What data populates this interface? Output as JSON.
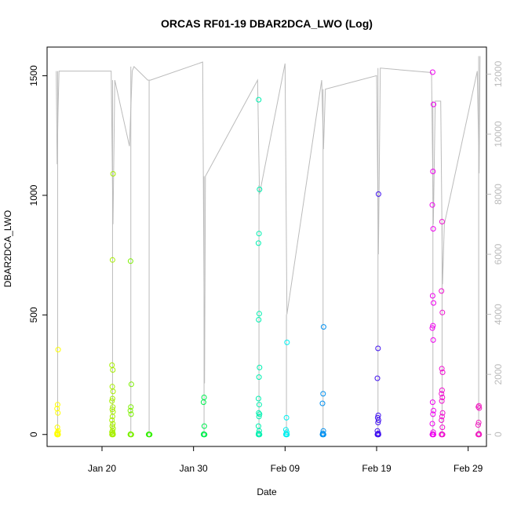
{
  "chart_data": {
    "type": "scatter",
    "title": "ORCAS RF01-19 DBAR2DCA_LWO (Log)",
    "xlabel": "Date",
    "ylabel": "DBAR2DCA_LWO",
    "x_range": [
      "2016-01-14",
      "2016-03-02"
    ],
    "ylim": [
      -50,
      1620
    ],
    "x_ticks": [
      {
        "date": "2016-01-20",
        "label": "Jan 20"
      },
      {
        "date": "2016-01-30",
        "label": "Jan 30"
      },
      {
        "date": "2016-02-09",
        "label": "Feb 09"
      },
      {
        "date": "2016-02-19",
        "label": "Feb 19"
      },
      {
        "date": "2016-02-29",
        "label": "Feb 29"
      }
    ],
    "y_ticks": [
      0,
      500,
      1000,
      1500
    ],
    "y2_ticks": [
      0,
      2000,
      4000,
      6000,
      8000,
      10000,
      12000
    ],
    "y2_range": [
      -400,
      12900
    ],
    "y2_color": "#bbbbbb",
    "grid": false,
    "legend": "none",
    "flights": [
      {
        "date": "2016-01-15",
        "color": "#ffff00",
        "values": [
          0,
          0,
          0,
          0,
          2,
          5,
          8,
          15,
          30,
          90,
          108,
          125,
          355
        ],
        "track": [
          [
            0,
            12100
          ],
          [
            0.1,
            9000
          ],
          [
            0.2,
            10800
          ],
          [
            0.3,
            12100
          ]
        ]
      },
      {
        "date": "2016-01-21",
        "color": "#a8f000",
        "values": [
          0,
          0,
          0,
          2,
          5,
          10,
          15,
          25,
          35,
          45,
          60,
          75,
          95,
          105,
          115,
          140,
          150,
          180,
          200,
          270,
          290,
          730,
          1090
        ],
        "track": [
          [
            0,
            12100
          ],
          [
            0.2,
            7000
          ],
          [
            0.4,
            11800
          ]
        ]
      },
      {
        "date": "2016-01-23",
        "color": "#7cf000",
        "values": [
          0,
          0,
          0,
          2,
          85,
          100,
          115,
          210,
          725
        ],
        "track": [
          [
            0,
            9600
          ],
          [
            0.3,
            12100
          ],
          [
            0.5,
            12250
          ]
        ]
      },
      {
        "date": "2016-01-25",
        "color": "#33f000",
        "values": [
          0,
          0,
          0,
          1
        ],
        "track": [
          [
            0,
            11800
          ],
          [
            0.3,
            11800
          ]
        ]
      },
      {
        "date": "2016-01-31",
        "color": "#00f050",
        "values": [
          0,
          0,
          0,
          2,
          35,
          135,
          155
        ],
        "track": [
          [
            0,
            12400
          ],
          [
            0.2,
            1700
          ],
          [
            0.3,
            8600
          ]
        ]
      },
      {
        "date": "2016-02-06",
        "color": "#00f0b0",
        "values": [
          0,
          0,
          0,
          5,
          15,
          35,
          75,
          85,
          90,
          125,
          150,
          240,
          280,
          480,
          505,
          800,
          840,
          1025,
          1400
        ],
        "track": [
          [
            0,
            11800
          ],
          [
            0.2,
            8000
          ],
          [
            0.4,
            8300
          ]
        ]
      },
      {
        "date": "2016-02-09",
        "color": "#00f0f0",
        "values": [
          0,
          0,
          0,
          3,
          10,
          20,
          70,
          385
        ],
        "track": [
          [
            0,
            12350
          ],
          [
            0.2,
            4000
          ]
        ]
      },
      {
        "date": "2016-02-13",
        "color": "#0090f0",
        "values": [
          0,
          0,
          0,
          5,
          15,
          130,
          170,
          450
        ],
        "track": [
          [
            0,
            11800
          ],
          [
            0.2,
            9500
          ],
          [
            0.4,
            11500
          ]
        ]
      },
      {
        "date": "2016-02-19",
        "color": "#4010f0",
        "values": [
          0,
          0,
          0,
          2,
          5,
          15,
          50,
          60,
          70,
          80,
          235,
          360,
          1005
        ],
        "track": [
          [
            0,
            11950
          ],
          [
            0.2,
            6000
          ],
          [
            0.4,
            12200
          ]
        ]
      },
      {
        "date": "2016-02-25",
        "color": "#f000f0",
        "values": [
          0,
          0,
          0,
          2,
          10,
          45,
          85,
          100,
          135,
          395,
          445,
          455,
          550,
          580,
          860,
          960,
          1100,
          1380,
          1515
        ],
        "track": [
          [
            0,
            12050
          ],
          [
            0.2,
            7000
          ],
          [
            0.4,
            11100
          ]
        ]
      },
      {
        "date": "2016-02-26",
        "color": "#f010d0",
        "values": [
          0,
          0,
          0,
          2,
          30,
          60,
          75,
          90,
          140,
          155,
          170,
          185,
          260,
          275,
          510,
          600,
          890
        ],
        "track": [
          [
            0,
            11100
          ],
          [
            0.2,
            5000
          ],
          [
            0.4,
            7000
          ]
        ]
      },
      {
        "date": "2016-03-01",
        "color": "#f020c0",
        "values": [
          0,
          0,
          0,
          1,
          3,
          40,
          50,
          110,
          115,
          120
        ],
        "track": [
          [
            0,
            12100
          ],
          [
            0.2,
            8700
          ],
          [
            0.3,
            12600
          ]
        ]
      }
    ]
  }
}
